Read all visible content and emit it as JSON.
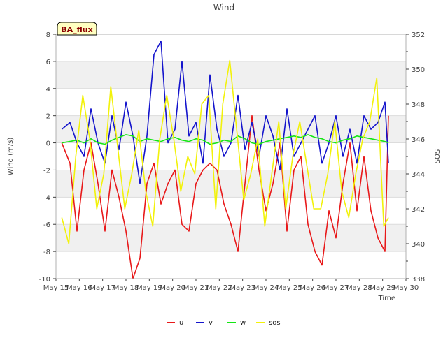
{
  "chart_data": {
    "type": "line",
    "title": "Wind",
    "badge": "BA_flux",
    "xlabel": "Time",
    "ylabel": "Wind (m/s)",
    "y2label": "SOS",
    "x_tick_labels": [
      "May 15",
      "May 16",
      "May 17",
      "May 18",
      "May 19",
      "May 20",
      "May 21",
      "May 22",
      "May 23",
      "May 24",
      "May 25",
      "May 26",
      "May 27",
      "May 28",
      "May 29",
      "May 30"
    ],
    "xlim": [
      0,
      15
    ],
    "ylim": [
      -10,
      8
    ],
    "y_ticks": [
      -10,
      -8,
      -6,
      -4,
      -2,
      0,
      2,
      4,
      6,
      8
    ],
    "y2lim": [
      338,
      352
    ],
    "y2_ticks": [
      338,
      340,
      342,
      344,
      346,
      348,
      350,
      352
    ],
    "series": [
      {
        "name": "u",
        "axis": "left",
        "color": "#e8191a",
        "x": [
          0.25,
          0.6,
          0.9,
          1.2,
          1.5,
          1.8,
          2.1,
          2.4,
          2.7,
          3.0,
          3.3,
          3.6,
          3.9,
          4.2,
          4.5,
          4.8,
          5.1,
          5.4,
          5.7,
          6.0,
          6.3,
          6.6,
          6.9,
          7.2,
          7.5,
          7.8,
          8.1,
          8.4,
          8.7,
          9.0,
          9.3,
          9.6,
          9.9,
          10.2,
          10.5,
          10.8,
          11.1,
          11.4,
          11.7,
          12.0,
          12.3,
          12.6,
          12.9,
          13.2,
          13.5,
          13.8,
          14.1,
          14.25
        ],
        "values": [
          0,
          -1.5,
          -6.5,
          -2,
          0,
          -3,
          -6.5,
          -2,
          -4,
          -6.5,
          -10,
          -8.5,
          -3,
          -1.5,
          -4.5,
          -3,
          -2,
          -6,
          -6.5,
          -3,
          -2,
          -1.5,
          -2,
          -4.5,
          -6,
          -8,
          -3,
          2,
          -2,
          -5,
          -3,
          0,
          -6.5,
          -2,
          -1,
          -6,
          -8,
          -9,
          -5,
          -7,
          -3,
          0,
          -5,
          -1,
          -5,
          -7,
          -8,
          2
        ]
      },
      {
        "name": "v",
        "axis": "left",
        "color": "#1414cc",
        "x": [
          0.25,
          0.6,
          0.9,
          1.2,
          1.5,
          1.8,
          2.1,
          2.4,
          2.7,
          3.0,
          3.3,
          3.6,
          3.9,
          4.2,
          4.5,
          4.8,
          5.1,
          5.4,
          5.7,
          6.0,
          6.3,
          6.6,
          6.9,
          7.2,
          7.5,
          7.8,
          8.1,
          8.4,
          8.7,
          9.0,
          9.3,
          9.6,
          9.9,
          10.2,
          10.5,
          10.8,
          11.1,
          11.4,
          11.7,
          12.0,
          12.3,
          12.6,
          12.9,
          13.2,
          13.5,
          13.8,
          14.1,
          14.25
        ],
        "values": [
          1,
          1.5,
          0,
          -1,
          2.5,
          0,
          -1.5,
          2,
          -0.5,
          3,
          0.5,
          -3,
          0.5,
          6.5,
          7.5,
          0,
          1,
          6,
          0.5,
          1.5,
          -1.5,
          5,
          1,
          -1,
          0,
          3.5,
          -0.5,
          1.5,
          -1,
          2,
          0.5,
          -2,
          2.5,
          -1,
          0,
          1,
          2,
          -1.5,
          0,
          2,
          -1,
          1,
          -1.5,
          2,
          1,
          1.5,
          3,
          -1.5
        ]
      },
      {
        "name": "w",
        "axis": "left",
        "color": "#14e614",
        "x": [
          0.25,
          0.6,
          0.9,
          1.2,
          1.5,
          1.8,
          2.1,
          2.4,
          2.7,
          3.0,
          3.3,
          3.6,
          3.9,
          4.2,
          4.5,
          4.8,
          5.1,
          5.4,
          5.7,
          6.0,
          6.3,
          6.6,
          6.9,
          7.2,
          7.5,
          7.8,
          8.1,
          8.4,
          8.7,
          9.0,
          9.3,
          9.6,
          9.9,
          10.2,
          10.5,
          10.8,
          11.1,
          11.4,
          11.7,
          12.0,
          12.3,
          12.6,
          12.9,
          13.2,
          13.5,
          13.8,
          14.1,
          14.25
        ],
        "values": [
          0,
          0.1,
          0.2,
          0,
          0.3,
          0,
          -0.1,
          0.2,
          0.4,
          0.6,
          0.5,
          0.1,
          0.3,
          0.2,
          0.1,
          0.3,
          0.4,
          0.2,
          0.1,
          0.3,
          0.2,
          -0.1,
          0,
          0.2,
          0.1,
          0.5,
          0.3,
          0,
          -0.1,
          0.1,
          0.2,
          0.3,
          0.4,
          0.5,
          0.4,
          0.6,
          0.4,
          0.3,
          0.1,
          0,
          0.2,
          0.3,
          0.5,
          0.4,
          0.3,
          0.2,
          0.1,
          0
        ]
      },
      {
        "name": "sos",
        "axis": "right",
        "color": "#f2f20a",
        "x": [
          0.25,
          0.55,
          0.85,
          1.15,
          1.45,
          1.75,
          2.05,
          2.35,
          2.65,
          2.95,
          3.25,
          3.55,
          3.85,
          4.15,
          4.45,
          4.75,
          5.05,
          5.35,
          5.65,
          5.95,
          6.25,
          6.55,
          6.85,
          7.15,
          7.45,
          7.75,
          8.05,
          8.35,
          8.65,
          8.95,
          9.25,
          9.55,
          9.85,
          10.15,
          10.45,
          10.75,
          11.05,
          11.35,
          11.65,
          11.95,
          12.25,
          12.55,
          12.85,
          13.15,
          13.45,
          13.75,
          14.05,
          14.25
        ],
        "values": [
          341.5,
          340,
          345,
          348.5,
          346,
          342,
          344,
          349,
          345.5,
          342,
          344,
          346.5,
          343,
          341,
          346,
          348.5,
          346,
          343,
          345,
          344,
          348,
          348.5,
          342,
          348,
          350.5,
          346.5,
          342.5,
          344,
          346,
          341,
          344,
          347,
          342,
          345,
          347,
          344.5,
          342,
          342,
          344,
          347,
          343,
          341.5,
          344,
          346,
          347,
          349.5,
          341,
          341.5
        ]
      }
    ]
  }
}
